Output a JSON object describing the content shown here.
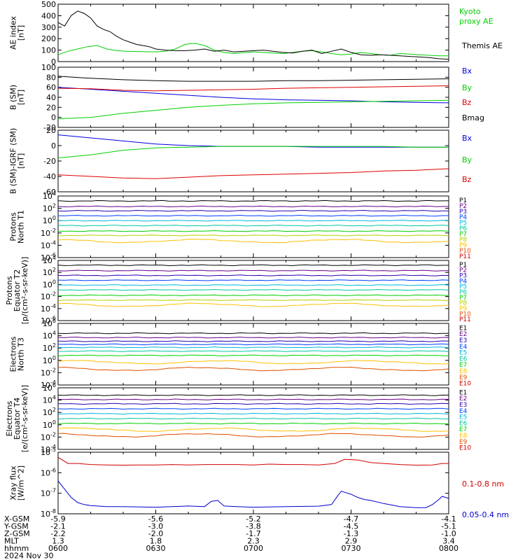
{
  "chart_data": [
    {
      "type": "line",
      "ylabel": [
        "AE index",
        "[nT]"
      ],
      "ylim": [
        0,
        500
      ],
      "yticks": [
        "0",
        "100",
        "200",
        "300",
        "400",
        "500"
      ],
      "series": [
        {
          "name": "Kyoto proxy AE",
          "color": "#00d000",
          "x": [
            0,
            3,
            6,
            9,
            12,
            15,
            18,
            21,
            24,
            27,
            30,
            33,
            36,
            39,
            42,
            45,
            48,
            51,
            54,
            57,
            60,
            63,
            66,
            69,
            72,
            75,
            78,
            81,
            84,
            87,
            90,
            93,
            96,
            99,
            102,
            105,
            108,
            111,
            114,
            117,
            120
          ],
          "values": [
            60,
            90,
            110,
            130,
            140,
            110,
            95,
            90,
            88,
            86,
            85,
            90,
            110,
            150,
            160,
            140,
            100,
            80,
            70,
            78,
            85,
            80,
            75,
            70,
            80,
            90,
            95,
            85,
            70,
            60,
            65,
            80,
            70,
            60,
            55,
            70,
            65,
            60,
            55,
            50,
            50
          ]
        },
        {
          "name": "Themis AE",
          "color": "#000000",
          "x": [
            0,
            2,
            4,
            6,
            8,
            10,
            12,
            14,
            16,
            18,
            20,
            22,
            24,
            26,
            28,
            30,
            33,
            36,
            39,
            42,
            45,
            48,
            51,
            54,
            57,
            60,
            63,
            66,
            69,
            72,
            75,
            78,
            81,
            84,
            87,
            90,
            93,
            96,
            99,
            102,
            105,
            108,
            111,
            114,
            117,
            120
          ],
          "values": [
            340,
            310,
            400,
            440,
            420,
            380,
            310,
            280,
            260,
            220,
            190,
            170,
            150,
            140,
            130,
            110,
            100,
            95,
            95,
            100,
            110,
            90,
            100,
            85,
            90,
            95,
            100,
            90,
            80,
            75,
            90,
            100,
            70,
            90,
            110,
            80,
            60,
            55,
            60,
            55,
            50,
            45,
            40,
            35,
            25,
            20
          ]
        }
      ]
    },
    {
      "type": "line",
      "ylabel": [
        "B (SM)",
        "[nT]"
      ],
      "ylim": [
        -20,
        100
      ],
      "yticks": [
        "-20",
        "0",
        "20",
        "40",
        "60",
        "80",
        "100"
      ],
      "series": [
        {
          "name": "Bx",
          "color": "#0000e0",
          "x": [
            0,
            10,
            20,
            30,
            40,
            50,
            60,
            70,
            80,
            90,
            100,
            110,
            120
          ],
          "values": [
            60,
            56,
            52,
            48,
            44,
            40,
            37,
            35,
            34,
            33,
            31,
            30,
            29
          ]
        },
        {
          "name": "By",
          "color": "#00d000",
          "x": [
            0,
            10,
            20,
            30,
            40,
            50,
            60,
            70,
            80,
            90,
            100,
            110,
            120
          ],
          "values": [
            -3,
            0,
            8,
            14,
            20,
            24,
            27,
            29,
            30,
            31,
            32,
            33,
            34
          ]
        },
        {
          "name": "Bz",
          "color": "#e00000",
          "x": [
            0,
            10,
            20,
            30,
            40,
            50,
            60,
            70,
            80,
            90,
            100,
            110,
            120
          ],
          "values": [
            58,
            57,
            54,
            53,
            54,
            55,
            56,
            58,
            59,
            60,
            61,
            62,
            63
          ]
        },
        {
          "name": "Bmag",
          "color": "#000000",
          "x": [
            0,
            10,
            20,
            30,
            40,
            50,
            60,
            70,
            80,
            90,
            100,
            110,
            120
          ],
          "values": [
            82,
            78,
            75,
            73,
            72,
            72,
            72,
            73,
            73,
            74,
            75,
            76,
            77
          ]
        }
      ]
    },
    {
      "type": "line",
      "ylabel": [
        "B (SM)-IGRF (SM)",
        "[nT]"
      ],
      "ylim": [
        -60,
        20
      ],
      "yticks": [
        "-60",
        "-40",
        "-20",
        "0",
        "20"
      ],
      "series": [
        {
          "name": "Bx",
          "color": "#0000e0",
          "x": [
            0,
            10,
            20,
            30,
            40,
            50,
            60,
            70,
            80,
            90,
            100,
            110,
            120
          ],
          "values": [
            14,
            10,
            6,
            2,
            0,
            -1,
            -1,
            -1,
            -2,
            -2,
            -2,
            -2,
            -2
          ]
        },
        {
          "name": "By",
          "color": "#00d000",
          "x": [
            0,
            10,
            20,
            30,
            40,
            50,
            60,
            70,
            80,
            90,
            100,
            110,
            120
          ],
          "values": [
            -16,
            -12,
            -6,
            -3,
            -2,
            -1,
            -1,
            -1,
            -1,
            -1,
            -1,
            -2,
            -2
          ]
        },
        {
          "name": "Bz",
          "color": "#e00000",
          "x": [
            0,
            10,
            20,
            30,
            40,
            50,
            60,
            70,
            80,
            90,
            100,
            110,
            120
          ],
          "values": [
            -38,
            -40,
            -42,
            -43,
            -41,
            -39,
            -38,
            -37,
            -36,
            -35,
            -33,
            -32,
            -30
          ]
        }
      ]
    },
    {
      "type": "line",
      "ylabel": [
        "Protons",
        "North T1"
      ],
      "yscale": "log",
      "ylim": [
        -6,
        4
      ],
      "yticks": [
        "10^4",
        "10^2",
        "10^0",
        "10^-2",
        "10^-4",
        "10^-6"
      ],
      "channels": [
        "P1",
        "P2",
        "P3",
        "P4",
        "P5",
        "P6",
        "P7",
        "P8",
        "P9",
        "P10",
        "P11"
      ],
      "channel_colors": [
        "#000000",
        "#6a008a",
        "#2a00b0",
        "#0040ff",
        "#00b8e0",
        "#00c8a0",
        "#00d000",
        "#b8d000",
        "#ffc000",
        "#e05000",
        "#d00000"
      ],
      "levels": [
        3.2,
        2.3,
        1.6,
        0.8,
        0.0,
        -0.8,
        -1.7,
        -2.4,
        -3.3,
        null,
        null
      ]
    },
    {
      "type": "line",
      "ylabel": [
        "Protons",
        "Equator T2",
        "[p/(cm²-s-sr-keV)]"
      ],
      "yscale": "log",
      "ylim": [
        -6,
        4
      ],
      "yticks": [
        "10^4",
        "10^2",
        "10^0",
        "10^-2",
        "10^-4",
        "10^-6"
      ],
      "channels": [
        "P1",
        "P2",
        "P3",
        "P4",
        "P5",
        "P6",
        "P7",
        "P8",
        "P9",
        "P10",
        "P11"
      ],
      "channel_colors": [
        "#000000",
        "#6a008a",
        "#2a00b0",
        "#0040ff",
        "#00b8e0",
        "#00c8a0",
        "#00d000",
        "#b8d000",
        "#ffc000",
        "#e05000",
        "#d00000"
      ],
      "levels": [
        3.2,
        2.3,
        1.5,
        0.7,
        -0.1,
        -0.9,
        -1.8,
        -2.6,
        -3.4,
        null,
        null
      ]
    },
    {
      "type": "line",
      "ylabel": [
        "Electrons",
        "North T3"
      ],
      "yscale": "log",
      "ylim": [
        -4,
        6
      ],
      "yticks": [
        "10^6",
        "10^4",
        "10^2",
        "10^0",
        "10^-2",
        "10^-4"
      ],
      "channels": [
        "E1",
        "E2",
        "E3",
        "E4",
        "E5",
        "E6",
        "E7",
        "E8",
        "E9",
        "E10"
      ],
      "channel_colors": [
        "#000000",
        "#6a008a",
        "#2a00b0",
        "#0040ff",
        "#00b8e0",
        "#00c8a0",
        "#00d000",
        "#ffc000",
        "#e05000",
        "#d00000"
      ],
      "levels": [
        4.4,
        3.7,
        3.1,
        2.6,
        2.1,
        1.5,
        0.8,
        -0.3,
        -1.4,
        null
      ]
    },
    {
      "type": "line",
      "ylabel": [
        "Electrons",
        "Equator T4",
        "[e/(cm²-s-sr-keV)]"
      ],
      "yscale": "log",
      "ylim": [
        -4,
        6
      ],
      "yticks": [
        "10^6",
        "10^4",
        "10^2",
        "10^0",
        "10^-2",
        "10^-4"
      ],
      "channels": [
        "E1",
        "E2",
        "E3",
        "E4",
        "E5",
        "E6",
        "E7",
        "E8",
        "E9",
        "E10"
      ],
      "channel_colors": [
        "#000000",
        "#6a008a",
        "#2a00b0",
        "#0040ff",
        "#00b8e0",
        "#00c8a0",
        "#00d000",
        "#ffc000",
        "#e05000",
        "#d00000"
      ],
      "levels": [
        4.8,
        4.1,
        3.4,
        2.6,
        1.8,
        1.0,
        0.2,
        -0.8,
        -1.7,
        null
      ]
    },
    {
      "type": "line",
      "ylabel": [
        "Xray flux",
        "[W/m^2]"
      ],
      "yscale": "log",
      "ylim": [
        -8,
        -5
      ],
      "yticks": [
        "10^-5",
        "10^-6",
        "10^-7",
        "10^-8"
      ],
      "series": [
        {
          "name": "0.1-0.8 nm",
          "color": "#d00000",
          "x": [
            0,
            3,
            6,
            10,
            15,
            20,
            25,
            30,
            35,
            40,
            45,
            50,
            55,
            60,
            65,
            70,
            75,
            80,
            85,
            88,
            92,
            96,
            100,
            105,
            110,
            115,
            118,
            120
          ],
          "values": [
            -5.25,
            -5.55,
            -5.55,
            -5.6,
            -5.62,
            -5.63,
            -5.62,
            -5.62,
            -5.6,
            -5.62,
            -5.6,
            -5.6,
            -5.6,
            -5.62,
            -5.58,
            -5.6,
            -5.6,
            -5.62,
            -5.55,
            -5.35,
            -5.38,
            -5.5,
            -5.55,
            -5.6,
            -5.63,
            -5.62,
            -5.55,
            -5.55
          ]
        },
        {
          "name": "0.05-0.4 nm",
          "color": "#0000d0",
          "x": [
            0,
            2,
            4,
            6,
            8,
            10,
            15,
            20,
            30,
            40,
            45,
            47,
            49,
            51,
            55,
            60,
            70,
            80,
            84,
            86,
            87,
            88,
            90,
            92,
            94,
            96,
            100,
            105,
            110,
            113,
            115,
            117,
            118,
            120
          ],
          "values": [
            -6.4,
            -6.8,
            -7.2,
            -7.45,
            -7.55,
            -7.6,
            -7.65,
            -7.65,
            -7.68,
            -7.62,
            -7.65,
            -7.4,
            -7.35,
            -7.62,
            -7.65,
            -7.68,
            -7.65,
            -7.63,
            -7.55,
            -7.1,
            -6.9,
            -6.95,
            -7.05,
            -7.2,
            -7.3,
            -7.35,
            -7.5,
            -7.65,
            -7.7,
            -7.7,
            -7.55,
            -7.3,
            -7.15,
            -7.25
          ]
        }
      ]
    }
  ],
  "footer": {
    "rows": [
      {
        "label": "X-GSM",
        "values": [
          "-5.9",
          "-5.6",
          "-5.2",
          "-4.7",
          "-4.1"
        ]
      },
      {
        "label": "Y-GSM",
        "values": [
          "-2.1",
          "-3.0",
          "-3.8",
          "-4.5",
          "-5.1"
        ]
      },
      {
        "label": "Z-GSM",
        "values": [
          "-2.2",
          "-2.0",
          "-1.7",
          "-1.3",
          "-1.0"
        ]
      },
      {
        "label": "MLT",
        "values": [
          "1.3",
          "1.8",
          "2.3",
          "2.9",
          "3.4"
        ]
      },
      {
        "label": "hhmm",
        "values": [
          "0600",
          "0630",
          "0700",
          "0730",
          "0800"
        ]
      }
    ],
    "date": "2024 Nov 30"
  }
}
